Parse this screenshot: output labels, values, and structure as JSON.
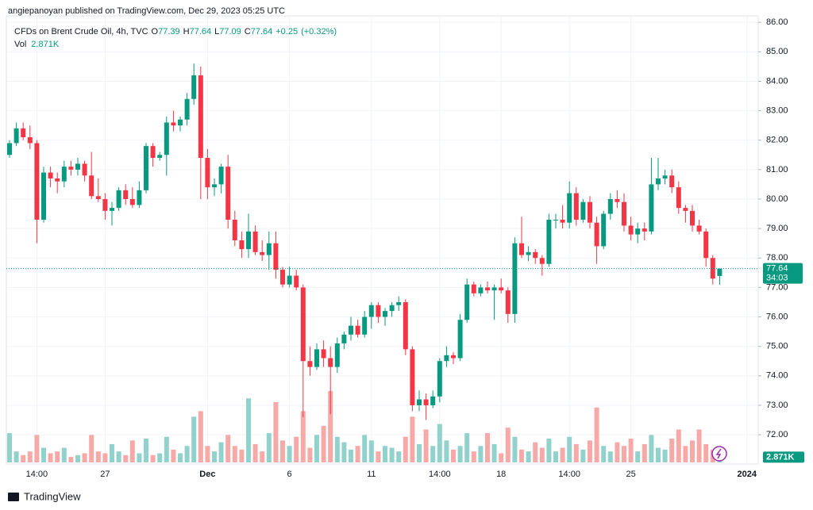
{
  "header": {
    "publisher": "angiepanoyan published on TradingView.com, Dec 29, 2023 05:25 UTC"
  },
  "footer": {
    "brand": "TradingView"
  },
  "chart_data": {
    "type": "candlestick",
    "title": "CFDs on Brent Crude Oil, 4h, TVC",
    "ohlc_legend": [
      {
        "key": "O",
        "value": 77.39
      },
      {
        "key": "H",
        "value": 77.64
      },
      {
        "key": "L",
        "value": 77.09
      },
      {
        "key": "C",
        "value": 77.64
      }
    ],
    "change": "+0.25",
    "change_pct": "(+0.32%)",
    "volume_title": "Vol",
    "volume_last_label": "2.871K",
    "countdown": "34:03",
    "up_color": "#089981",
    "down_color": "#f23645",
    "volume_up_color": "#92d2cc",
    "volume_down_color": "#f7a9a7",
    "ylim": [
      71.06,
      86.22
    ],
    "yticks": [
      {
        "value": 72,
        "label": "72.00"
      },
      {
        "value": 73,
        "label": "73.00"
      },
      {
        "value": 74,
        "label": "74.00"
      },
      {
        "value": 75,
        "label": "75.00"
      },
      {
        "value": 76,
        "label": "76.00"
      },
      {
        "value": 77,
        "label": "77.00"
      },
      {
        "value": 78,
        "label": "78.00"
      },
      {
        "value": 79,
        "label": "79.00"
      },
      {
        "value": 80,
        "label": "80.00"
      },
      {
        "value": 81,
        "label": "81.00"
      },
      {
        "value": 82,
        "label": "82.00"
      },
      {
        "value": 83,
        "label": "83.00"
      },
      {
        "value": 84,
        "label": "84.00"
      },
      {
        "value": 85,
        "label": "85.00"
      },
      {
        "value": 86,
        "label": "86.00"
      }
    ],
    "grid": true,
    "categories": [
      null,
      null,
      null,
      null,
      "14:00",
      null,
      null,
      null,
      null,
      null,
      null,
      null,
      null,
      null,
      "27",
      null,
      null,
      null,
      null,
      null,
      null,
      null,
      null,
      null,
      null,
      null,
      null,
      null,
      null,
      "Dec",
      null,
      null,
      null,
      null,
      null,
      null,
      null,
      null,
      null,
      null,
      null,
      "6",
      null,
      null,
      null,
      null,
      null,
      null,
      null,
      null,
      null,
      null,
      null,
      "11",
      null,
      null,
      null,
      null,
      null,
      null,
      null,
      null,
      null,
      "14:00",
      null,
      null,
      null,
      null,
      null,
      null,
      null,
      null,
      "18",
      null,
      null,
      null,
      null,
      null,
      null,
      null,
      null,
      null,
      "14:00",
      null,
      null,
      null,
      null,
      null,
      null,
      null,
      null,
      "25",
      null,
      null,
      null,
      null,
      null,
      null,
      null,
      null,
      null,
      null,
      null,
      null,
      null,
      null,
      null,
      null,
      "2024"
    ],
    "open": [
      81.5,
      81.9,
      82.4,
      82.1,
      81.9,
      79.3,
      80.9,
      80.7,
      80.6,
      81.1,
      81.0,
      81.2,
      80.8,
      80.1,
      80.0,
      79.6,
      79.7,
      80.3,
      80.0,
      79.8,
      80.3,
      81.8,
      81.4,
      81.5,
      82.6,
      82.5,
      82.7,
      83.4,
      84.2,
      81.4,
      80.4,
      80.5,
      81.1,
      79.3,
      78.6,
      78.3,
      78.9,
      78.2,
      78.1,
      78.5,
      77.6,
      77.1,
      77.4,
      77.0,
      74.5,
      74.3,
      74.9,
      74.6,
      74.3,
      75.1,
      75.4,
      75.7,
      75.4,
      76.0,
      76.4,
      76.0,
      76.2,
      76.4,
      76.5,
      74.9,
      73.0,
      73.2,
      73.0,
      73.3,
      74.5,
      74.7,
      74.6,
      75.9,
      77.1,
      76.8,
      77.0,
      76.9,
      77.0,
      76.9,
      76.1,
      78.5,
      78.1,
      78.2,
      78.0,
      77.8,
      79.3,
      79.3,
      79.2,
      80.2,
      79.3,
      79.9,
      79.2,
      78.4,
      79.5,
      80.0,
      79.9,
      79.1,
      78.8,
      79.0,
      78.9,
      80.5,
      80.7,
      80.8,
      80.4,
      79.7,
      79.6,
      79.1,
      78.9,
      78.0,
      77.39,
      null,
      null,
      null,
      null
    ],
    "high": [
      82.0,
      82.6,
      82.6,
      82.5,
      82.0,
      81.1,
      81.1,
      80.9,
      81.3,
      81.3,
      81.4,
      81.3,
      81.6,
      80.7,
      80.2,
      79.9,
      80.4,
      80.5,
      80.4,
      80.6,
      81.9,
      81.9,
      81.6,
      82.8,
      83.0,
      82.8,
      83.6,
      84.6,
      84.5,
      81.7,
      80.7,
      81.2,
      81.5,
      79.6,
      78.9,
      79.5,
      79.1,
      78.6,
      78.9,
      78.9,
      77.7,
      77.7,
      77.6,
      77.1,
      75.0,
      75.1,
      75.2,
      75.0,
      75.3,
      75.5,
      76.0,
      75.9,
      76.2,
      76.5,
      76.5,
      76.3,
      76.5,
      76.7,
      76.6,
      75.0,
      73.5,
      73.4,
      73.5,
      74.6,
      75.0,
      74.8,
      76.1,
      77.3,
      77.2,
      77.1,
      77.2,
      77.1,
      77.3,
      77.0,
      78.7,
      79.4,
      78.4,
      78.3,
      78.1,
      79.5,
      79.5,
      79.8,
      80.6,
      80.4,
      80.0,
      80.1,
      79.4,
      79.6,
      80.2,
      80.3,
      80.2,
      79.4,
      79.2,
      79.2,
      81.4,
      81.4,
      81.0,
      81.0,
      80.6,
      79.8,
      79.8,
      79.3,
      79.0,
      78.1,
      77.64,
      null,
      null,
      null,
      null
    ],
    "low": [
      81.4,
      81.8,
      82.0,
      81.7,
      78.5,
      79.2,
      80.4,
      80.2,
      80.4,
      80.8,
      80.8,
      80.6,
      80.0,
      79.9,
      79.3,
      79.1,
      79.6,
      79.8,
      79.7,
      79.7,
      80.2,
      81.1,
      81.3,
      80.8,
      82.3,
      82.3,
      82.5,
      83.2,
      80.0,
      80.0,
      80.1,
      80.2,
      79.0,
      78.4,
      78.0,
      78.0,
      78.1,
      77.9,
      77.6,
      77.3,
      77.0,
      77.0,
      76.9,
      72.6,
      74.0,
      74.2,
      74.3,
      72.7,
      74.1,
      74.9,
      75.2,
      75.3,
      75.3,
      75.6,
      75.8,
      75.7,
      76.0,
      76.2,
      74.7,
      72.8,
      72.8,
      72.5,
      72.9,
      73.1,
      74.3,
      74.4,
      74.5,
      75.8,
      76.7,
      76.7,
      76.8,
      75.9,
      76.8,
      75.8,
      75.8,
      78.0,
      77.9,
      77.8,
      77.4,
      77.7,
      79.0,
      79.0,
      79.0,
      79.1,
      79.2,
      79.0,
      77.8,
      78.3,
      79.3,
      79.7,
      78.9,
      78.6,
      78.5,
      78.6,
      78.8,
      80.3,
      80.5,
      80.2,
      79.5,
      79.2,
      78.9,
      78.8,
      77.7,
      77.1,
      77.09,
      null,
      null,
      null,
      null
    ],
    "close": [
      81.9,
      82.4,
      82.1,
      81.9,
      79.3,
      80.9,
      80.7,
      80.6,
      81.1,
      81.0,
      81.2,
      80.8,
      80.1,
      80.0,
      79.6,
      79.7,
      80.3,
      80.0,
      79.8,
      80.3,
      81.8,
      81.4,
      81.5,
      82.6,
      82.5,
      82.7,
      83.4,
      84.2,
      81.4,
      80.4,
      80.5,
      81.1,
      79.3,
      78.6,
      78.3,
      78.9,
      78.2,
      78.1,
      78.5,
      77.6,
      77.1,
      77.4,
      77.0,
      74.5,
      74.3,
      74.9,
      74.6,
      74.3,
      75.1,
      75.4,
      75.7,
      75.4,
      76.0,
      76.4,
      76.0,
      76.2,
      76.4,
      76.5,
      74.9,
      73.0,
      73.2,
      73.0,
      73.3,
      74.5,
      74.7,
      74.6,
      75.9,
      77.1,
      76.8,
      77.0,
      76.9,
      77.0,
      76.9,
      76.1,
      78.5,
      78.1,
      78.2,
      78.0,
      77.8,
      79.3,
      79.3,
      79.2,
      80.2,
      79.3,
      79.9,
      79.2,
      78.4,
      79.5,
      80.0,
      79.9,
      79.1,
      78.8,
      79.0,
      78.9,
      80.5,
      80.7,
      80.8,
      80.4,
      79.7,
      79.6,
      79.1,
      78.9,
      78.0,
      77.3,
      77.64,
      null,
      null,
      null,
      null
    ],
    "volume": [
      16000,
      6000,
      4000,
      6000,
      15000,
      8000,
      5000,
      6000,
      8000,
      3000,
      4000,
      5000,
      15000,
      6000,
      5000,
      10000,
      6000,
      4000,
      12000,
      5000,
      13000,
      4000,
      5000,
      14000,
      7000,
      5000,
      9000,
      25000,
      28000,
      9000,
      6000,
      11000,
      15000,
      9000,
      7000,
      35000,
      10000,
      6000,
      16000,
      33000,
      12000,
      9000,
      14000,
      28000,
      8000,
      15000,
      20000,
      39000,
      14000,
      11000,
      7000,
      9000,
      15000,
      12000,
      6000,
      9000,
      8000,
      6000,
      14000,
      25000,
      10000,
      18000,
      9000,
      21000,
      12000,
      7000,
      9000,
      16000,
      6000,
      9000,
      16000,
      10000,
      5000,
      19000,
      14000,
      7000,
      6000,
      11000,
      8000,
      13000,
      6000,
      8000,
      14000,
      10000,
      7000,
      12000,
      30000,
      9000,
      6000,
      11000,
      9000,
      13000,
      6000,
      10000,
      15000,
      8000,
      7000,
      13000,
      18000,
      9000,
      12000,
      18000,
      10000,
      7000,
      2871,
      null,
      null,
      null,
      null
    ]
  }
}
